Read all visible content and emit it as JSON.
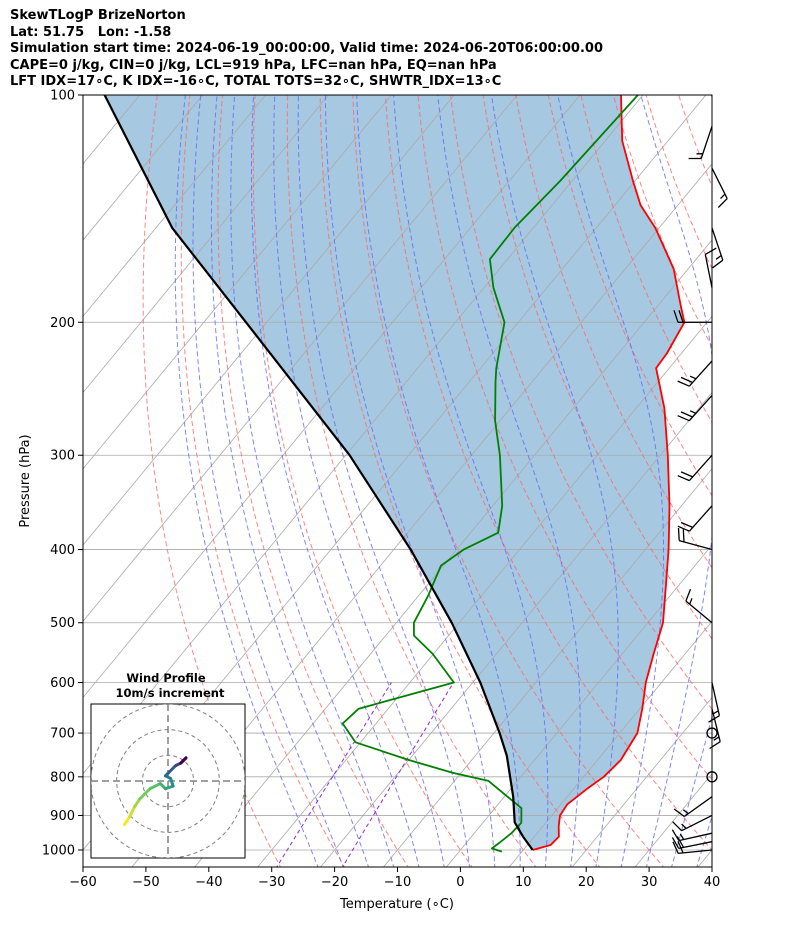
{
  "header": {
    "line1": "SkewTLogP BrizeNorton",
    "line2": "Lat: 51.75   Lon: -1.58",
    "line3": "Simulation start time: 2024-06-19_00:00:00, Valid time: 2024-06-20T06:00:00.00",
    "line4": "CAPE=0 j/kg, CIN=0 j/kg, LCL=919 hPa, LFC=nan hPa, EQ=nan hPa",
    "line5": "LFT IDX=17∘C, K IDX=-16∘C, TOTAL TOTS=32∘C, SHWTR_IDX=13∘C"
  },
  "chart_data": {
    "type": "line",
    "subtype": "skew-t log-p",
    "xlabel": "Temperature (∘C)",
    "ylabel": "Pressure (hPa)",
    "xlim": [
      -60,
      40
    ],
    "ylim": [
      1050,
      100
    ],
    "y_scale": "log",
    "x_ticks": [
      "−60",
      "−50",
      "−40",
      "−30",
      "−20",
      "−10",
      "0",
      "10",
      "20",
      "30",
      "40"
    ],
    "x_tick_values": [
      -60,
      -50,
      -40,
      -30,
      -20,
      -10,
      0,
      10,
      20,
      30,
      40
    ],
    "y_ticks": [
      "100",
      "200",
      "300",
      "400",
      "500",
      "600",
      "700",
      "800",
      "900",
      "1000"
    ],
    "y_tick_values": [
      100,
      200,
      300,
      400,
      500,
      600,
      700,
      800,
      900,
      1000
    ],
    "grid": true,
    "colors": {
      "temperature": "#ff0000",
      "dewpoint": "#008000",
      "parcel": "#000000",
      "shade": "#a6c8e0",
      "dry_adiabat": "#ff6666",
      "moist_adiabat": "#6666ff",
      "mixing_ratio": "#8a2be2",
      "isotherm": "#aaaaaa"
    },
    "series": [
      {
        "key": "temperature",
        "points": [
          [
            1000,
            11.5
          ],
          [
            985,
            13.7
          ],
          [
            960,
            13.9
          ],
          [
            930,
            12.5
          ],
          [
            900,
            11.3
          ],
          [
            870,
            11.0
          ],
          [
            830,
            12.1
          ],
          [
            800,
            13.2
          ],
          [
            760,
            13.7
          ],
          [
            700,
            12.8
          ],
          [
            650,
            10.4
          ],
          [
            600,
            7.5
          ],
          [
            550,
            5.0
          ],
          [
            500,
            2.4
          ],
          [
            450,
            -1.7
          ],
          [
            400,
            -6.3
          ],
          [
            350,
            -11.9
          ],
          [
            300,
            -18.8
          ],
          [
            260,
            -25.5
          ],
          [
            230,
            -32.1
          ],
          [
            220,
            -32.3
          ],
          [
            200,
            -33.6
          ],
          [
            190,
            -36.4
          ],
          [
            170,
            -42.3
          ],
          [
            150,
            -50.6
          ],
          [
            140,
            -55.9
          ],
          [
            130,
            -60.3
          ],
          [
            115,
            -67.3
          ],
          [
            100,
            -73.5
          ]
        ]
      },
      {
        "key": "dewpoint",
        "points": [
          [
            1005,
            6.8
          ],
          [
            995,
            4.8
          ],
          [
            980,
            5.2
          ],
          [
            950,
            5.9
          ],
          [
            920,
            6.1
          ],
          [
            880,
            4.2
          ],
          [
            850,
            0.5
          ],
          [
            810,
            -4.6
          ],
          [
            790,
            -11.4
          ],
          [
            760,
            -20.0
          ],
          [
            720,
            -30.8
          ],
          [
            680,
            -35.3
          ],
          [
            650,
            -34.7
          ],
          [
            600,
            -23.0
          ],
          [
            550,
            -30.1
          ],
          [
            520,
            -35.5
          ],
          [
            500,
            -37.2
          ],
          [
            460,
            -38.5
          ],
          [
            420,
            -40.4
          ],
          [
            400,
            -38.9
          ],
          [
            380,
            -35.6
          ],
          [
            350,
            -38.5
          ],
          [
            300,
            -45.5
          ],
          [
            270,
            -50.8
          ],
          [
            240,
            -55.8
          ],
          [
            230,
            -57.5
          ],
          [
            200,
            -62.2
          ],
          [
            180,
            -68.5
          ],
          [
            165,
            -72.8
          ],
          [
            150,
            -73.0
          ],
          [
            130,
            -71.9
          ],
          [
            100,
            -70.8
          ]
        ]
      },
      {
        "key": "parcel",
        "points": [
          [
            1000,
            11.5
          ],
          [
            960,
            8.2
          ],
          [
            919,
            5.0
          ],
          [
            850,
            1.4
          ],
          [
            750,
            -5.0
          ],
          [
            700,
            -9.1
          ],
          [
            600,
            -18.8
          ],
          [
            500,
            -31.2
          ],
          [
            400,
            -47.3
          ],
          [
            300,
            -69.4
          ],
          [
            200,
            -103.3
          ],
          [
            150,
            -127.4
          ],
          [
            100,
            -155.6
          ]
        ]
      }
    ],
    "wind_barbs": [
      {
        "p": 1000,
        "u": 10,
        "v": 1
      },
      {
        "p": 975,
        "u": 10,
        "v": 2
      },
      {
        "p": 950,
        "u": 9,
        "v": 2
      },
      {
        "p": 900,
        "u": 8,
        "v": 4
      },
      {
        "p": 850,
        "u": 7,
        "v": 5
      },
      {
        "p": 800,
        "u": 0,
        "v": 0
      },
      {
        "p": 700,
        "u": 0,
        "v": 0
      },
      {
        "p": 650,
        "u": -2,
        "v": 8
      },
      {
        "p": 600,
        "u": -2,
        "v": 9
      },
      {
        "p": 500,
        "u": 6,
        "v": -5
      },
      {
        "p": 400,
        "u": 11,
        "v": -3
      },
      {
        "p": 350,
        "u": 8,
        "v": 9
      },
      {
        "p": 300,
        "u": 8,
        "v": 9
      },
      {
        "p": 250,
        "u": 9,
        "v": 10
      },
      {
        "p": 225,
        "u": 9,
        "v": 10
      },
      {
        "p": 200,
        "u": 11,
        "v": 0
      },
      {
        "p": 180,
        "u": 1,
        "v": -5
      },
      {
        "p": 150,
        "u": -3,
        "v": 9
      },
      {
        "p": 125,
        "u": -4,
        "v": 8
      },
      {
        "p": 110,
        "u": 3,
        "v": 9
      }
    ],
    "hodograph": {
      "title": "Wind Profile",
      "subtitle": "10m/s increment",
      "ring_step": 10,
      "xlim": [
        -30,
        30
      ],
      "ylim": [
        -30,
        30
      ],
      "points": [
        [
          -17,
          -17
        ],
        [
          -15,
          -14
        ],
        [
          -13,
          -10
        ],
        [
          -11,
          -7
        ],
        [
          -7,
          -3
        ],
        [
          -3,
          -1
        ],
        [
          -1,
          -3
        ],
        [
          2,
          -2
        ],
        [
          1,
          1
        ],
        [
          -1,
          2
        ],
        [
          0,
          3
        ],
        [
          3,
          6
        ],
        [
          5,
          7
        ],
        [
          6,
          8
        ],
        [
          7,
          9
        ],
        [
          5,
          7
        ]
      ]
    }
  }
}
